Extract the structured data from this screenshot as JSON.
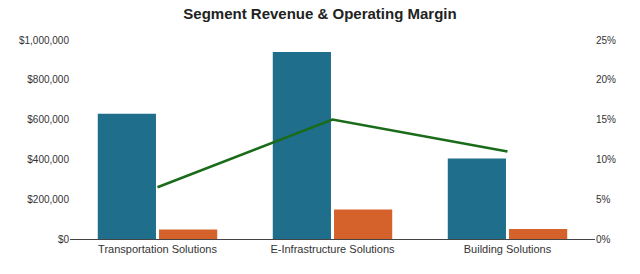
{
  "chart_data": {
    "type": "bar",
    "title": "Segment Revenue & Operating Margin",
    "categories": [
      "Transportation Solutions",
      "E-Infrastructure Solutions",
      "Building Solutions"
    ],
    "series": [
      {
        "type": "bar",
        "color": "#1e6e8c",
        "values": [
          630000,
          940000,
          405000
        ]
      },
      {
        "type": "bar",
        "color": "#d4622a",
        "values": [
          48000,
          148000,
          50000
        ]
      },
      {
        "type": "line",
        "color": "#1a6b1a",
        "values": [
          0.065,
          0.15,
          0.11
        ],
        "axis": "y2"
      }
    ],
    "ylim": [
      0,
      1000000
    ],
    "yticks": [
      {
        "value": 0,
        "label": "$0"
      },
      {
        "value": 200000,
        "label": "$200,000"
      },
      {
        "value": 400000,
        "label": "$400,000"
      },
      {
        "value": 600000,
        "label": "$600,000"
      },
      {
        "value": 800000,
        "label": "$800,000"
      },
      {
        "value": 1000000,
        "label": "$1,000,000"
      }
    ],
    "y2lim": [
      0,
      0.25
    ],
    "y2ticks": [
      {
        "value": 0,
        "label": "0%"
      },
      {
        "value": 0.05,
        "label": "5%"
      },
      {
        "value": 0.1,
        "label": "10%"
      },
      {
        "value": 0.15,
        "label": "15%"
      },
      {
        "value": 0.2,
        "label": "20%"
      },
      {
        "value": 0.25,
        "label": "25%"
      }
    ],
    "grid": false
  }
}
